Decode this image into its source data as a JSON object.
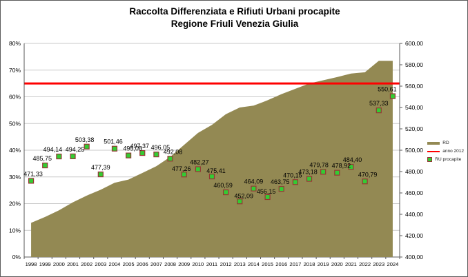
{
  "chart_data": {
    "type": "combo",
    "title": "Raccolta Differenziata e Rifiuti Urbani procapite",
    "subtitle": "Regione Friuli Venezia Giulia",
    "x": [
      "1998",
      "1999",
      "2000",
      "2001",
      "2002",
      "2003",
      "2004",
      "2005",
      "2006",
      "2007",
      "2008",
      "2009",
      "2010",
      "2011",
      "2012",
      "2013",
      "2014",
      "2015",
      "2016",
      "2017",
      "2018",
      "2019",
      "2020",
      "2021",
      "2022",
      "2023",
      "2024"
    ],
    "series": [
      {
        "name": "RD",
        "type": "area",
        "axis": "left",
        "unit": "%",
        "color": "#938953",
        "values": [
          12.8,
          15.0,
          17.5,
          20.5,
          23.0,
          25.2,
          27.8,
          29.0,
          31.5,
          34.0,
          37.5,
          42.0,
          46.5,
          49.5,
          53.5,
          56.0,
          56.7,
          58.7,
          61.0,
          63.0,
          65.0,
          66.2,
          67.4,
          68.7,
          69.2,
          73.5,
          73.5
        ]
      },
      {
        "name": "anno 2012",
        "type": "line",
        "axis": "left",
        "unit": "%",
        "color": "#FF0000",
        "constant": 65
      },
      {
        "name": "RU procapite",
        "type": "scatter",
        "axis": "right",
        "unit": "kg",
        "color": "#33CC33",
        "border": "#963634",
        "values": [
          471.33,
          485.75,
          494.14,
          494.25,
          503.38,
          477.39,
          501.46,
          495.08,
          497.37,
          496.05,
          492.08,
          477.26,
          482.27,
          475.41,
          460.59,
          452.09,
          464.09,
          456.15,
          463.75,
          470.15,
          473.18,
          479.78,
          478.92,
          484.4,
          470.79,
          537.33,
          550.61
        ],
        "labels": [
          "471,33",
          "485,75",
          "494,14",
          "494,25",
          "503,38",
          "477,39",
          "501,46",
          "495,08",
          "497,37",
          "496,05",
          "492,08",
          "477,26",
          "482,27",
          "475,41",
          "460,59",
          "452,09",
          "464,09",
          "456,15",
          "463,75",
          "470,15",
          "473,18",
          "479,78",
          "478,92",
          "484,40",
          "470,79",
          "537,33",
          "550,61"
        ],
        "label_offsets": [
          [
            3,
            0
          ],
          [
            -4,
            0
          ],
          [
            -9,
            0
          ],
          [
            3,
            0
          ],
          [
            -3,
            0
          ],
          [
            0,
            0
          ],
          [
            -2,
            0
          ],
          [
            6,
            0
          ],
          [
            -4,
            0
          ],
          [
            6,
            0
          ],
          [
            4,
            0
          ],
          [
            -4,
            2
          ],
          [
            2,
            0
          ],
          [
            6,
            2
          ],
          [
            -4,
            0
          ],
          [
            6,
            2
          ],
          [
            0,
            0
          ],
          [
            -2,
            2
          ],
          [
            -2,
            0
          ],
          [
            -4,
            0
          ],
          [
            -2,
            0
          ],
          [
            -6,
            0
          ],
          [
            6,
            0
          ],
          [
            2,
            0
          ],
          [
            4,
            0
          ],
          [
            0,
            0
          ],
          [
            -8,
            0
          ]
        ]
      }
    ],
    "left_axis": {
      "min": 0,
      "max": 80,
      "step": 10,
      "ticks": [
        "0%",
        "10%",
        "20%",
        "30%",
        "40%",
        "50%",
        "60%",
        "70%",
        "80%"
      ]
    },
    "right_axis": {
      "min": 400,
      "max": 600,
      "step": 20,
      "ticks": [
        "400,00",
        "420,00",
        "440,00",
        "460,00",
        "480,00",
        "500,00",
        "520,00",
        "540,00",
        "560,00",
        "580,00",
        "600,00"
      ]
    },
    "legend": [
      {
        "label": "RD",
        "swatch": "line",
        "color": "#938953",
        "thick": 4
      },
      {
        "label": "anno 2012",
        "swatch": "line",
        "color": "#FF0000",
        "thick": 2
      },
      {
        "label": "RU procapite",
        "swatch": "square",
        "color": "#33CC33",
        "border": "#963634"
      }
    ],
    "legend_position": "right",
    "grid": true,
    "colors": {
      "gridline": "#C9C9C9",
      "axis": "#595959",
      "text": "#000000"
    }
  }
}
